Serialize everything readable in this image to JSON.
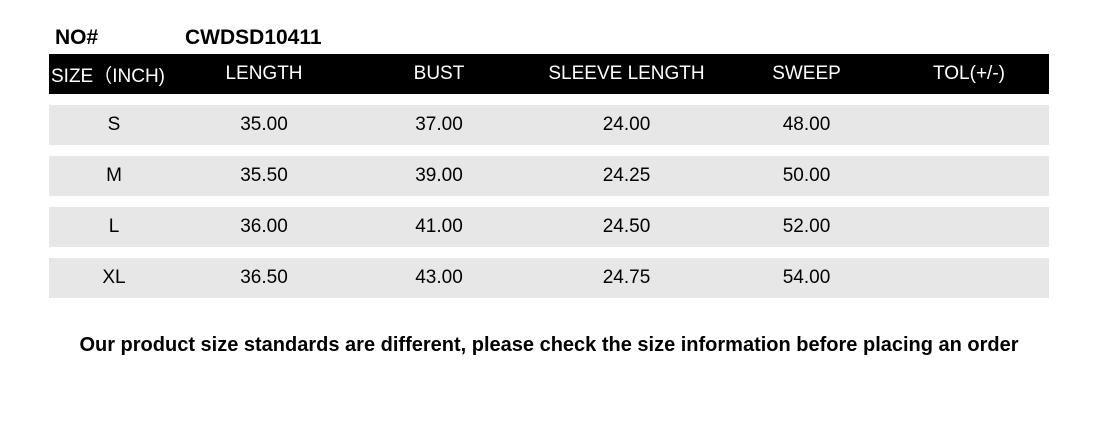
{
  "header": {
    "no_label": "NO#",
    "no_value": "CWDSD10411"
  },
  "chart_data": {
    "type": "table",
    "columns": [
      "SIZE（INCH)",
      "LENGTH",
      "BUST",
      "SLEEVE LENGTH",
      "SWEEP",
      "TOL(+/-)"
    ],
    "rows": [
      [
        "S",
        "35.00",
        "37.00",
        "24.00",
        "48.00",
        ""
      ],
      [
        "M",
        "35.50",
        "39.00",
        "24.25",
        "50.00",
        ""
      ],
      [
        "L",
        "36.00",
        "41.00",
        "24.50",
        "52.00",
        ""
      ],
      [
        "XL",
        "36.50",
        "43.00",
        "24.75",
        "54.00",
        ""
      ]
    ]
  },
  "note": "Our product size standards are different, please check the size information before placing an order",
  "colors": {
    "page_bg": "#ffffff",
    "header_bg": "#000000",
    "header_text": "#ffffff",
    "row_bg": "#e7e7e7",
    "text": "#000000"
  }
}
